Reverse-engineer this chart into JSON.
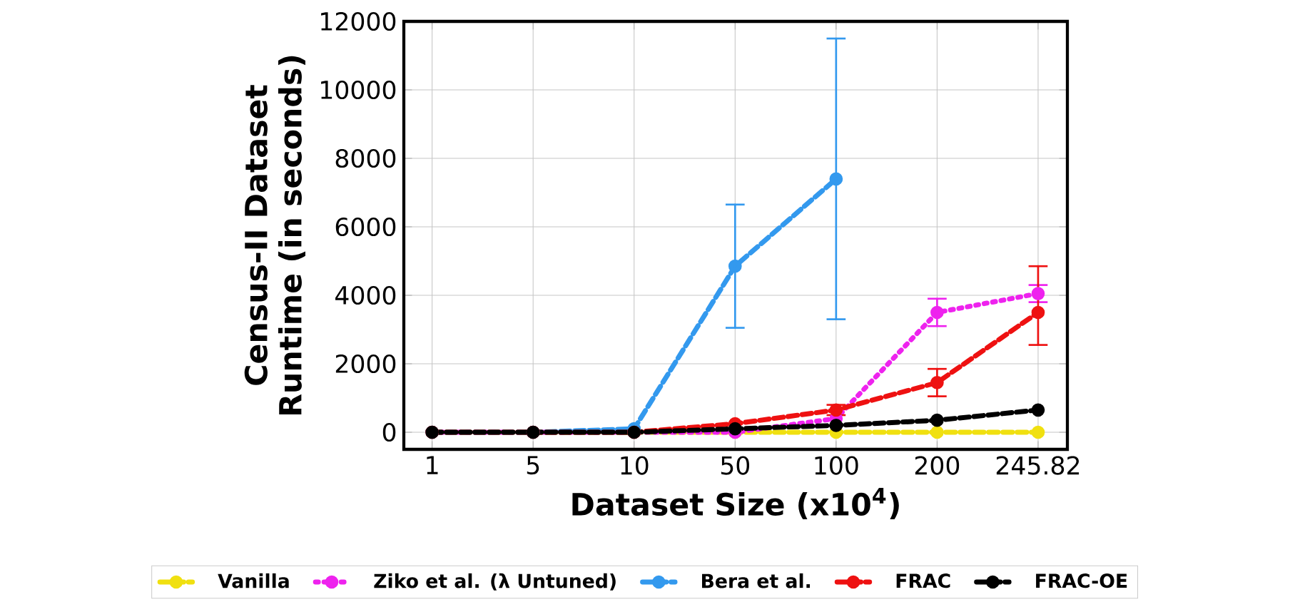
{
  "chart_data": {
    "type": "line",
    "xlabel": "Dataset Size (x10$^{4}$)",
    "ylabel": "Census-II Dataset Runtime (in seconds)",
    "categories": [
      "1",
      "5",
      "10",
      "50",
      "100",
      "200",
      "245.82"
    ],
    "ylim": [
      -500,
      12000
    ],
    "yticks": [
      0,
      2000,
      4000,
      6000,
      8000,
      10000,
      12000
    ],
    "grid": true,
    "legend": "bottom",
    "marker": "circle",
    "series": [
      {
        "name": "Vanilla",
        "color": "#f0e010",
        "line_style": "dashed",
        "values": [
          0,
          0,
          0,
          0,
          0,
          0,
          0
        ]
      },
      {
        "name": "Ziko et al. (λ Untuned)",
        "color": "#ee22ee",
        "line_style": "dotted",
        "values": [
          0,
          0,
          0,
          0,
          400,
          3500,
          4050
        ],
        "errors": [
          null,
          null,
          null,
          null,
          null,
          400,
          250
        ]
      },
      {
        "name": "Bera et al.",
        "color": "#3399ee",
        "line_style": "dashed",
        "values": [
          0,
          0,
          100,
          4850,
          7400,
          null,
          null
        ],
        "errors": [
          null,
          null,
          null,
          1800,
          4100,
          null,
          null
        ]
      },
      {
        "name": "FRAC",
        "color": "#ee1111",
        "line_style": "dashed",
        "values": [
          0,
          0,
          0,
          250,
          650,
          1450,
          3500
        ],
        "errors": [
          null,
          null,
          null,
          null,
          150,
          400,
          [
            2550,
            4850
          ]
        ]
      },
      {
        "name": "FRAC-OE",
        "color": "#000000",
        "line_style": "dashed",
        "values": [
          0,
          0,
          0,
          100,
          200,
          350,
          650
        ]
      }
    ]
  }
}
